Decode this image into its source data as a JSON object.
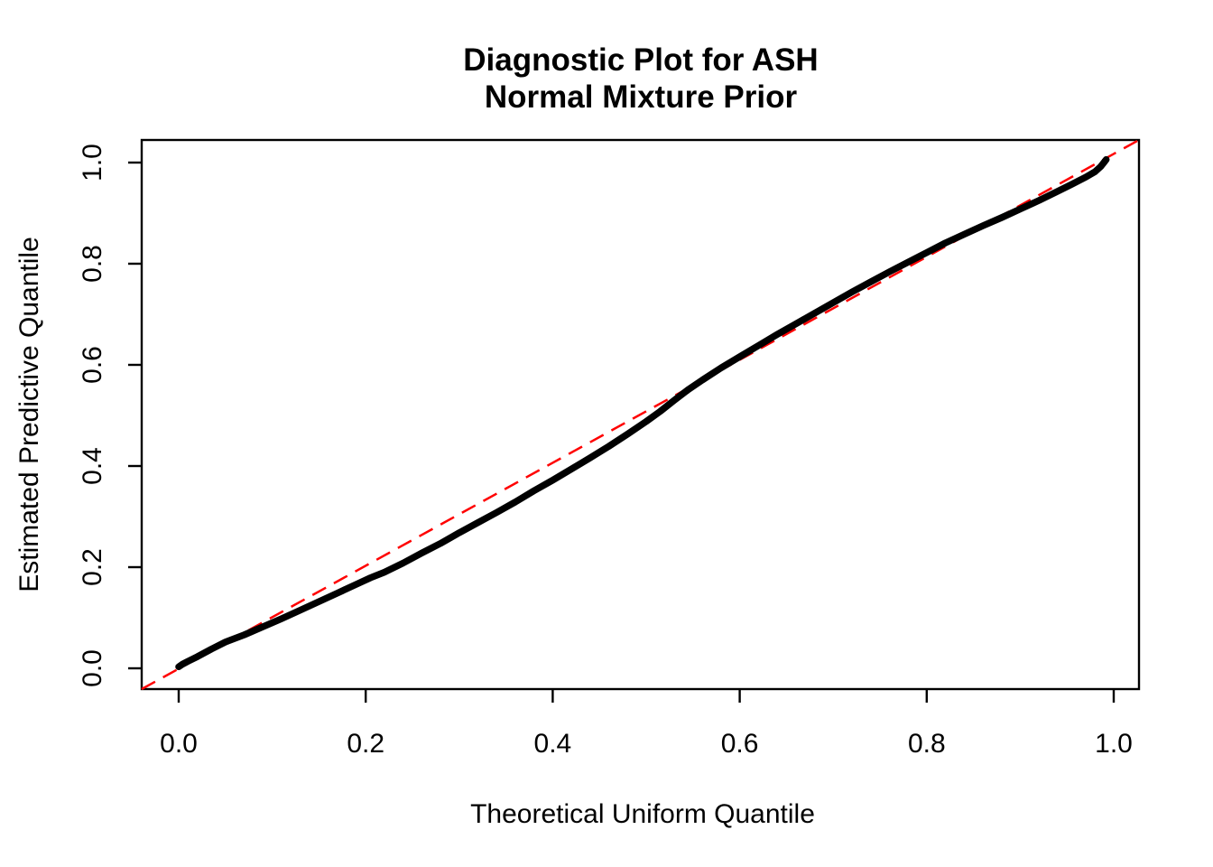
{
  "figure": {
    "background_color": "#FFFFFF",
    "text_color": "#000000"
  },
  "chart_data": {
    "type": "line",
    "title": "Diagnostic Plot for ASH\nNormal Mixture Prior",
    "title_line1": "Diagnostic Plot for ASH",
    "title_line2": "Normal Mixture Prior",
    "xlabel": "Theoretical Uniform Quantile",
    "ylabel": "Estimated Predictive Quantile",
    "xlim": [
      -0.04,
      1.03
    ],
    "ylim": [
      -0.04,
      1.05
    ],
    "grid": false,
    "legend": "none",
    "x_ticks": [
      0.0,
      0.2,
      0.4,
      0.6,
      0.8,
      1.0
    ],
    "y_ticks": [
      0.0,
      0.2,
      0.4,
      0.6,
      0.8,
      1.0
    ],
    "x_tick_labels": [
      "0.0",
      "0.2",
      "0.4",
      "0.6",
      "0.8",
      "1.0"
    ],
    "y_tick_labels": [
      "0.0",
      "0.2",
      "0.4",
      "0.6",
      "0.8",
      "1.0"
    ],
    "reference_line": {
      "name": "identity-line y = x",
      "intercept": 0,
      "slope": 1,
      "color": "#FF0000",
      "style": "dashed"
    },
    "series": [
      {
        "name": "estimated predictive quantile vs theoretical uniform quantile",
        "color": "#000000",
        "marker": "filled-point",
        "points": [
          [
            0.0,
            0.003
          ],
          [
            0.004,
            0.008
          ],
          [
            0.01,
            0.014
          ],
          [
            0.02,
            0.023
          ],
          [
            0.035,
            0.038
          ],
          [
            0.05,
            0.052
          ],
          [
            0.07,
            0.066
          ],
          [
            0.09,
            0.082
          ],
          [
            0.11,
            0.098
          ],
          [
            0.13,
            0.115
          ],
          [
            0.15,
            0.132
          ],
          [
            0.17,
            0.149
          ],
          [
            0.19,
            0.166
          ],
          [
            0.205,
            0.179
          ],
          [
            0.22,
            0.19
          ],
          [
            0.24,
            0.208
          ],
          [
            0.26,
            0.228
          ],
          [
            0.28,
            0.247
          ],
          [
            0.3,
            0.268
          ],
          [
            0.32,
            0.288
          ],
          [
            0.34,
            0.308
          ],
          [
            0.36,
            0.329
          ],
          [
            0.38,
            0.351
          ],
          [
            0.4,
            0.372
          ],
          [
            0.42,
            0.394
          ],
          [
            0.44,
            0.416
          ],
          [
            0.46,
            0.439
          ],
          [
            0.48,
            0.463
          ],
          [
            0.5,
            0.488
          ],
          [
            0.515,
            0.508
          ],
          [
            0.53,
            0.53
          ],
          [
            0.545,
            0.551
          ],
          [
            0.56,
            0.57
          ],
          [
            0.58,
            0.594
          ],
          [
            0.6,
            0.616
          ],
          [
            0.62,
            0.638
          ],
          [
            0.64,
            0.66
          ],
          [
            0.66,
            0.681
          ],
          [
            0.68,
            0.702
          ],
          [
            0.7,
            0.723
          ],
          [
            0.72,
            0.744
          ],
          [
            0.74,
            0.764
          ],
          [
            0.76,
            0.784
          ],
          [
            0.78,
            0.803
          ],
          [
            0.8,
            0.822
          ],
          [
            0.82,
            0.841
          ],
          [
            0.84,
            0.858
          ],
          [
            0.86,
            0.875
          ],
          [
            0.88,
            0.891
          ],
          [
            0.9,
            0.908
          ],
          [
            0.92,
            0.925
          ],
          [
            0.94,
            0.943
          ],
          [
            0.955,
            0.957
          ],
          [
            0.97,
            0.971
          ],
          [
            0.98,
            0.982
          ],
          [
            0.986,
            0.992
          ],
          [
            0.99,
            1.001
          ],
          [
            0.992,
            1.006
          ]
        ]
      }
    ]
  }
}
